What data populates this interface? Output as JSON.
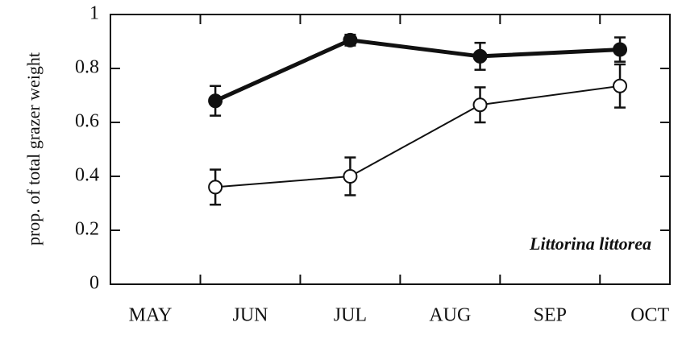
{
  "chart_data": {
    "type": "line",
    "ylabel": "prop. of total grazer weight",
    "annotation": "Littorina littorea",
    "categories": [
      "MAY",
      "JUN",
      "JUL",
      "AUG",
      "SEP",
      "OCT"
    ],
    "xlim": [
      -0.4,
      5.2
    ],
    "xticks": [
      0.5,
      1.5,
      2.5,
      3.5,
      4.5
    ],
    "ylim": [
      0,
      1
    ],
    "yticks": [
      0,
      0.2,
      0.4,
      0.6,
      0.8,
      1
    ],
    "x": [
      0.65,
      2.0,
      3.3,
      4.7
    ],
    "series": [
      {
        "color": "#111111",
        "marker": "filled",
        "line_width": 5,
        "values": [
          0.68,
          0.905,
          0.845,
          0.87
        ],
        "errors": [
          0.055,
          0.02,
          0.05,
          0.045
        ]
      },
      {
        "color": "#111111",
        "marker": "open",
        "line_width": 2,
        "values": [
          0.36,
          0.4,
          0.665,
          0.735
        ],
        "errors": [
          0.065,
          0.07,
          0.065,
          0.08
        ]
      }
    ]
  }
}
